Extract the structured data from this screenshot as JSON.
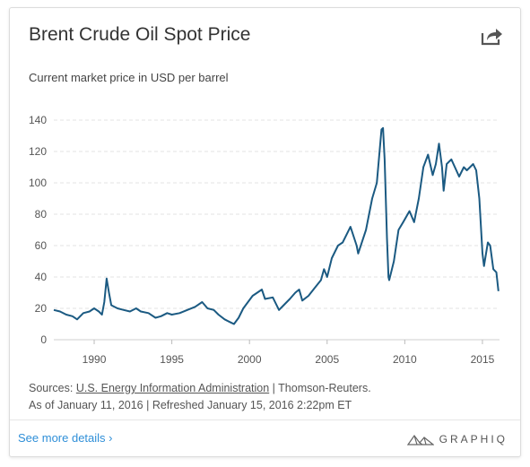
{
  "card": {
    "title": "Brent Crude Oil Spot Price",
    "subtitle": "Current market price in USD per barrel",
    "share_icon": "share-icon"
  },
  "sources": {
    "prefix": "Sources:",
    "link_text": "U.S. Energy Information Administration",
    "suffix": " | Thomson-Reuters.",
    "asof": "As of January 11, 2016 | Refreshed January 15, 2016 2:22pm ET"
  },
  "footer": {
    "details_label": "See more details ›",
    "brand": "GRAPHIQ"
  },
  "colors": {
    "line": "#1b5a82",
    "grid": "#e3e3e3",
    "link": "#2f8fd8"
  },
  "chart_data": {
    "type": "line",
    "title": "Brent Crude Oil Spot Price",
    "ylabel": "",
    "xlabel": "",
    "xlim": [
      1987.4,
      2016.1
    ],
    "ylim": [
      0,
      140
    ],
    "yticks": [
      0,
      20,
      40,
      60,
      80,
      100,
      120,
      140
    ],
    "xticks": [
      1990,
      1995,
      2000,
      2005,
      2010,
      2015
    ],
    "grid": "horizontal dashed",
    "series": [
      {
        "name": "",
        "points": [
          [
            1987.4,
            19
          ],
          [
            1987.8,
            18
          ],
          [
            1988.2,
            16
          ],
          [
            1988.6,
            15
          ],
          [
            1988.9,
            13
          ],
          [
            1989.3,
            17
          ],
          [
            1989.7,
            18
          ],
          [
            1990.0,
            20
          ],
          [
            1990.3,
            18
          ],
          [
            1990.5,
            16
          ],
          [
            1990.65,
            24
          ],
          [
            1990.8,
            39
          ],
          [
            1990.95,
            30
          ],
          [
            1991.1,
            22
          ],
          [
            1991.5,
            20
          ],
          [
            1991.9,
            19
          ],
          [
            1992.3,
            18
          ],
          [
            1992.7,
            20
          ],
          [
            1993.0,
            18
          ],
          [
            1993.5,
            17
          ],
          [
            1993.95,
            14
          ],
          [
            1994.3,
            15
          ],
          [
            1994.7,
            17
          ],
          [
            1995.0,
            16
          ],
          [
            1995.5,
            17
          ],
          [
            1996.0,
            19
          ],
          [
            1996.5,
            21
          ],
          [
            1996.95,
            24
          ],
          [
            1997.3,
            20
          ],
          [
            1997.7,
            19
          ],
          [
            1998.0,
            16
          ],
          [
            1998.4,
            13
          ],
          [
            1998.8,
            11
          ],
          [
            1999.0,
            10
          ],
          [
            1999.3,
            14
          ],
          [
            1999.6,
            20
          ],
          [
            1999.9,
            24
          ],
          [
            2000.2,
            28
          ],
          [
            2000.5,
            30
          ],
          [
            2000.8,
            32
          ],
          [
            2001.0,
            26
          ],
          [
            2001.5,
            27
          ],
          [
            2001.9,
            19
          ],
          [
            2002.2,
            22
          ],
          [
            2002.6,
            26
          ],
          [
            2002.95,
            30
          ],
          [
            2003.2,
            32
          ],
          [
            2003.4,
            25
          ],
          [
            2003.8,
            28
          ],
          [
            2004.2,
            33
          ],
          [
            2004.6,
            38
          ],
          [
            2004.8,
            45
          ],
          [
            2005.0,
            40
          ],
          [
            2005.3,
            52
          ],
          [
            2005.7,
            60
          ],
          [
            2006.0,
            62
          ],
          [
            2006.5,
            72
          ],
          [
            2006.9,
            60
          ],
          [
            2007.0,
            55
          ],
          [
            2007.5,
            70
          ],
          [
            2007.9,
            90
          ],
          [
            2008.2,
            100
          ],
          [
            2008.5,
            134
          ],
          [
            2008.6,
            135
          ],
          [
            2008.7,
            115
          ],
          [
            2008.85,
            65
          ],
          [
            2008.95,
            40
          ],
          [
            2009.0,
            38
          ],
          [
            2009.3,
            50
          ],
          [
            2009.6,
            70
          ],
          [
            2009.9,
            75
          ],
          [
            2010.3,
            82
          ],
          [
            2010.6,
            75
          ],
          [
            2010.9,
            90
          ],
          [
            2011.2,
            110
          ],
          [
            2011.5,
            118
          ],
          [
            2011.8,
            105
          ],
          [
            2012.0,
            112
          ],
          [
            2012.2,
            125
          ],
          [
            2012.4,
            110
          ],
          [
            2012.5,
            95
          ],
          [
            2012.7,
            112
          ],
          [
            2013.0,
            115
          ],
          [
            2013.5,
            104
          ],
          [
            2013.8,
            110
          ],
          [
            2014.0,
            108
          ],
          [
            2014.4,
            112
          ],
          [
            2014.6,
            108
          ],
          [
            2014.8,
            90
          ],
          [
            2015.0,
            55
          ],
          [
            2015.1,
            47
          ],
          [
            2015.35,
            62
          ],
          [
            2015.5,
            60
          ],
          [
            2015.7,
            45
          ],
          [
            2015.9,
            43
          ],
          [
            2016.03,
            31
          ]
        ]
      }
    ]
  }
}
